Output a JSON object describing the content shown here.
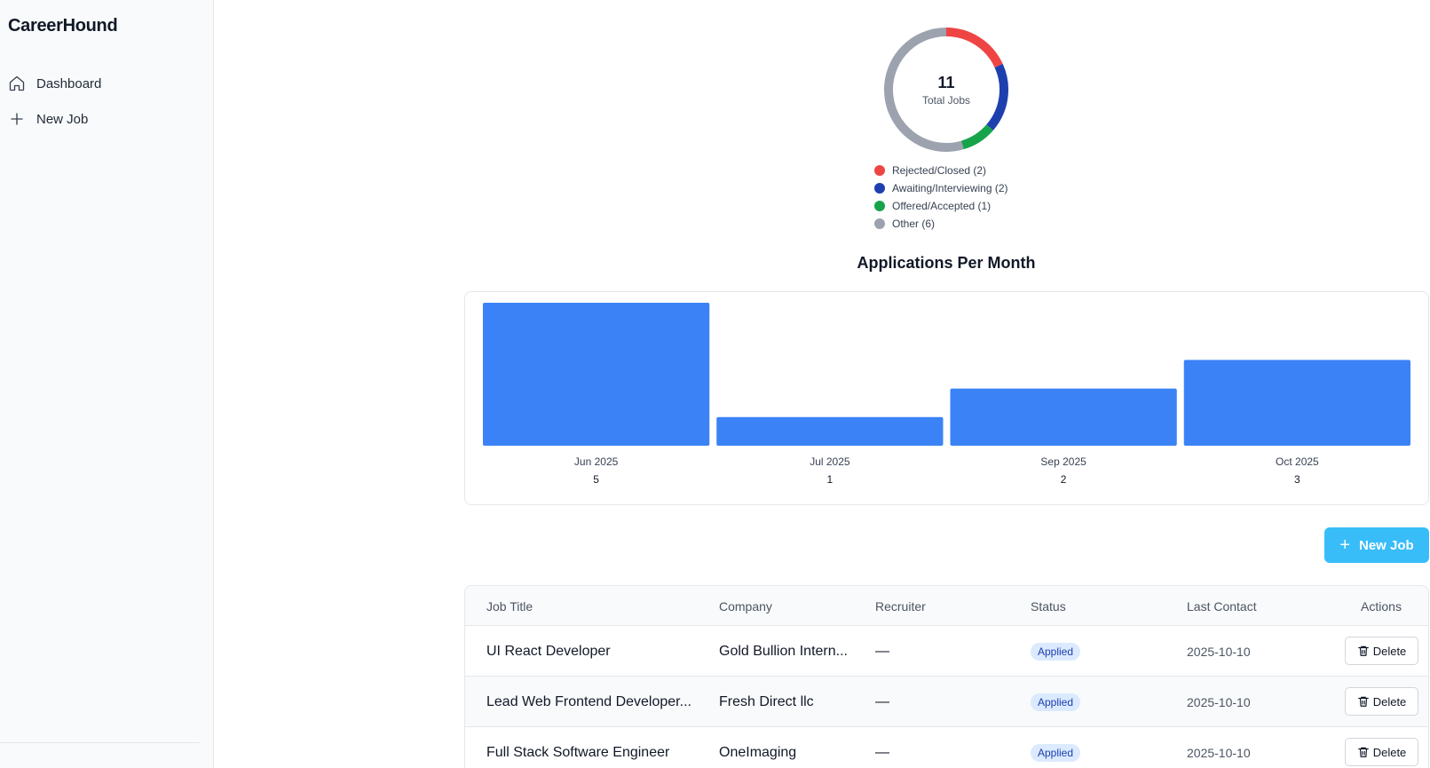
{
  "app": {
    "title": "CareerHound"
  },
  "sidebar": {
    "items": [
      {
        "label": "Dashboard",
        "icon": "home-icon"
      },
      {
        "label": "New Job",
        "icon": "plus-icon"
      }
    ]
  },
  "summary": {
    "total": "11",
    "total_label": "Total Jobs",
    "segments": [
      {
        "label": "Rejected/Closed (2)",
        "count": 2,
        "color": "#ef4444"
      },
      {
        "label": "Awaiting/Interviewing (2)",
        "count": 2,
        "color": "#1e40af"
      },
      {
        "label": "Offered/Accepted (1)",
        "count": 1,
        "color": "#16a34a"
      },
      {
        "label": "Other (6)",
        "count": 6,
        "color": "#9ca3af"
      }
    ]
  },
  "chart_data": {
    "type": "bar",
    "title": "Applications Per Month",
    "categories": [
      "Jun 2025",
      "Jul 2025",
      "Sep 2025",
      "Oct 2025"
    ],
    "values": [
      5,
      1,
      2,
      3
    ],
    "value_labels": [
      "5",
      "1",
      "2",
      "3"
    ],
    "bar_color": "#3b82f6",
    "ylim": [
      0,
      5
    ]
  },
  "actions": {
    "new_job_label": "New Job"
  },
  "table": {
    "headers": [
      "Job Title",
      "Company",
      "Recruiter",
      "Status",
      "Last Contact",
      "Actions"
    ],
    "rows": [
      {
        "title": "UI React Developer",
        "company": "Gold Bullion Intern...",
        "recruiter": "—",
        "status": "Applied",
        "last_contact": "2025-10-10",
        "action": "Delete"
      },
      {
        "title": "Lead Web Frontend Developer...",
        "company": "Fresh Direct llc",
        "recruiter": "—",
        "status": "Applied",
        "last_contact": "2025-10-10",
        "action": "Delete"
      },
      {
        "title": "Full Stack Software Engineer",
        "company": "OneImaging",
        "recruiter": "—",
        "status": "Applied",
        "last_contact": "2025-10-10",
        "action": "Delete"
      }
    ]
  }
}
